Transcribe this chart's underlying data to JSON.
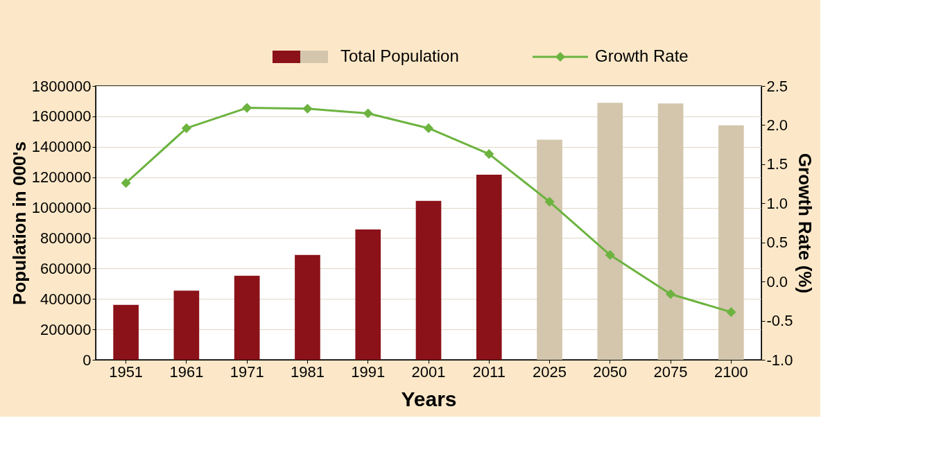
{
  "chart_data": {
    "type": "bar",
    "xlabel": "Years",
    "ylabel": "Population in 000's",
    "y2label": "Growth Rate (%)",
    "categories": [
      "1951",
      "1961",
      "1971",
      "1981",
      "1991",
      "2001",
      "2011",
      "2025",
      "2050",
      "2075",
      "2100"
    ],
    "series": [
      {
        "name": "Total Population",
        "colors": [
          "#8b1219",
          "#8b1219",
          "#8b1219",
          "#8b1219",
          "#8b1219",
          "#8b1219",
          "#8b1219",
          "#d3c6ad",
          "#d3c6ad",
          "#d3c6ad",
          "#d3c6ad"
        ],
        "values": [
          361000,
          455000,
          553000,
          689000,
          857000,
          1045000,
          1217000,
          1447000,
          1689000,
          1685000,
          1541000
        ]
      },
      {
        "name": "Growth Rate",
        "type": "line",
        "axis": "y2",
        "color": "#6cb33f",
        "marker": "diamond",
        "values": [
          1.26,
          1.96,
          2.22,
          2.21,
          2.15,
          1.96,
          1.63,
          1.02,
          0.34,
          -0.16,
          -0.39
        ]
      }
    ],
    "ylim": [
      0,
      1800000
    ],
    "yticks": [
      0,
      200000,
      400000,
      600000,
      800000,
      1000000,
      1200000,
      1400000,
      1600000,
      1800000
    ],
    "y2lim": [
      -1.0,
      2.5
    ],
    "y2ticks": [
      {
        "value": -1.0,
        "label": "-1.0"
      },
      {
        "value": -0.5,
        "label": "-0.5"
      },
      {
        "value": 0.0,
        "label": "0.0"
      },
      {
        "value": 0.5,
        "label": "0.5"
      },
      {
        "value": 1.0,
        "label": "1.0"
      },
      {
        "value": 1.5,
        "label": "1.5"
      },
      {
        "value": 2.0,
        "label": "2.0"
      },
      {
        "value": 2.5,
        "label": "2.5"
      }
    ],
    "grid": "y",
    "legend": "top"
  }
}
